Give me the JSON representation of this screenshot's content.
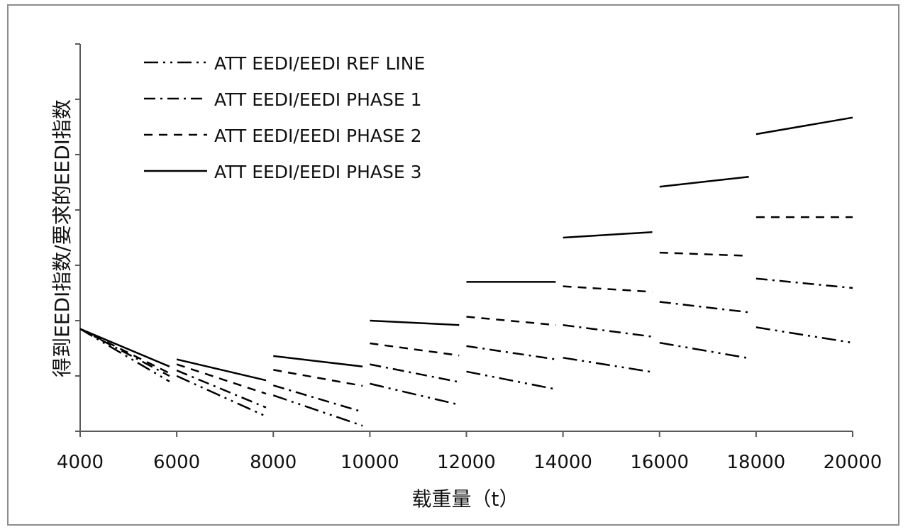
{
  "chart_data": {
    "type": "line",
    "xlabel": "载重量（t）",
    "ylabel": "得到EEDI指数/要求的EEDI指数",
    "x_ticks": [
      "4000",
      "6000",
      "8000",
      "10000",
      "12000",
      "14000",
      "16000",
      "18000",
      "20000"
    ],
    "xlim": [
      4000,
      20000
    ],
    "ylim": [
      0,
      7
    ],
    "grid": false,
    "legend_position": "top-left",
    "series": [
      {
        "name": "ATT EEDI/EEDI REF LINE",
        "segments": [
          [
            [
              4000,
              1.85
            ],
            [
              5850,
              0.9
            ]
          ],
          [
            [
              6000,
              1.0
            ],
            [
              7850,
              0.27
            ]
          ],
          [
            [
              8000,
              0.65
            ],
            [
              9850,
              0.1
            ]
          ],
          [
            [
              10000,
              0.86
            ],
            [
              11850,
              0.48
            ]
          ],
          [
            [
              12000,
              1.08
            ],
            [
              13850,
              0.76
            ]
          ],
          [
            [
              14000,
              1.33
            ],
            [
              15850,
              1.07
            ]
          ],
          [
            [
              16000,
              1.6
            ],
            [
              17850,
              1.32
            ]
          ],
          [
            [
              18000,
              1.88
            ],
            [
              20000,
              1.6
            ]
          ]
        ]
      },
      {
        "name": "ATT EEDI/EEDI PHASE 1",
        "segments": [
          [
            [
              4000,
              1.85
            ],
            [
              5850,
              1.0
            ]
          ],
          [
            [
              6000,
              1.1
            ],
            [
              7850,
              0.43
            ]
          ],
          [
            [
              8000,
              0.83
            ],
            [
              9850,
              0.35
            ]
          ],
          [
            [
              10000,
              1.21
            ],
            [
              11850,
              0.89
            ]
          ],
          [
            [
              12000,
              1.54
            ],
            [
              13850,
              1.3
            ]
          ],
          [
            [
              14000,
              1.92
            ],
            [
              15850,
              1.71
            ]
          ],
          [
            [
              16000,
              2.34
            ],
            [
              17850,
              2.15
            ]
          ],
          [
            [
              18000,
              2.76
            ],
            [
              20000,
              2.59
            ]
          ]
        ]
      },
      {
        "name": "ATT EEDI/EEDI PHASE 2",
        "segments": [
          [
            [
              4000,
              1.85
            ],
            [
              5850,
              1.05
            ]
          ],
          [
            [
              6000,
              1.21
            ],
            [
              7850,
              0.68
            ]
          ],
          [
            [
              8000,
              1.11
            ],
            [
              9850,
              0.82
            ]
          ],
          [
            [
              10000,
              1.59
            ],
            [
              11850,
              1.37
            ]
          ],
          [
            [
              12000,
              2.07
            ],
            [
              13850,
              1.92
            ]
          ],
          [
            [
              14000,
              2.62
            ],
            [
              15850,
              2.52
            ]
          ],
          [
            [
              16000,
              3.23
            ],
            [
              17850,
              3.17
            ]
          ],
          [
            [
              18000,
              3.87
            ],
            [
              20000,
              3.87
            ]
          ]
        ]
      },
      {
        "name": "ATT EEDI/EEDI PHASE 3",
        "segments": [
          [
            [
              4000,
              1.85
            ],
            [
              5850,
              1.17
            ]
          ],
          [
            [
              6000,
              1.3
            ],
            [
              7850,
              0.92
            ]
          ],
          [
            [
              8000,
              1.36
            ],
            [
              9850,
              1.17
            ]
          ],
          [
            [
              10000,
              2.0
            ],
            [
              11850,
              1.92
            ]
          ],
          [
            [
              12000,
              2.7
            ],
            [
              13850,
              2.7
            ]
          ],
          [
            [
              14000,
              3.5
            ],
            [
              15850,
              3.6
            ]
          ],
          [
            [
              16000,
              4.42
            ],
            [
              17850,
              4.6
            ]
          ],
          [
            [
              18000,
              5.37
            ],
            [
              20000,
              5.67
            ]
          ]
        ]
      }
    ]
  },
  "styles": {
    "line_color": "#000000",
    "axis_color": "#595959",
    "text_color": "#111111",
    "border_color": "#8c8c8c",
    "dash_patterns": [
      "20 7 3 7 3 7",
      "16 7 3 7",
      "12 9",
      ""
    ]
  }
}
